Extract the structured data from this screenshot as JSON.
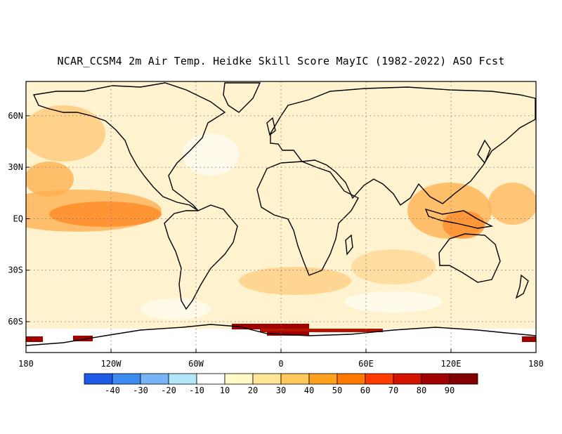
{
  "title": "NCAR_CCSM4 2m Air Temp. Heidke Skill Score MayIC (1982-2022) ASO Fcst",
  "map": {
    "lat_labels": [
      "60N",
      "30N",
      "EQ",
      "30S",
      "60S"
    ],
    "lat_values": [
      60,
      30,
      0,
      -30,
      -60
    ],
    "lon_labels": [
      "180",
      "120W",
      "60W",
      "0",
      "60E",
      "120E",
      "180"
    ],
    "lon_values": [
      -180,
      -120,
      -60,
      0,
      60,
      120,
      180
    ],
    "lat_range": [
      -78,
      80
    ],
    "lon_range": [
      -180,
      180
    ],
    "grid": "dotted"
  },
  "colorbar": {
    "labels": [
      "-40",
      "-30",
      "-20",
      "-10",
      "10",
      "20",
      "30",
      "40",
      "50",
      "60",
      "70",
      "80",
      "90"
    ],
    "colors": [
      "#1e5ae6",
      "#3c8cf0",
      "#78b4f5",
      "#b4e6fa",
      "#ffffff",
      "#fffac8",
      "#ffe696",
      "#ffc85a",
      "#ffa01e",
      "#ff7800",
      "#ff3c00",
      "#d21400",
      "#a00000",
      "#820000"
    ]
  }
}
